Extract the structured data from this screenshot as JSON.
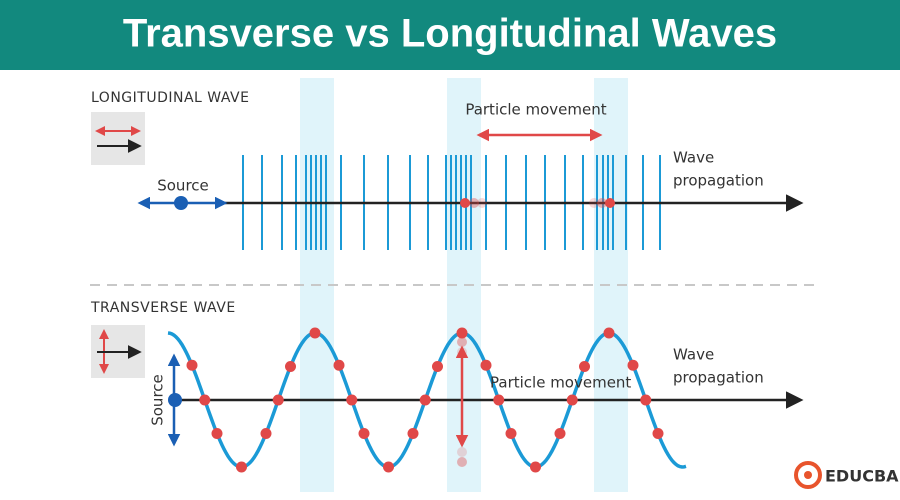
{
  "header": {
    "title": "Transverse vs Longitudinal Waves"
  },
  "longitudinal": {
    "label": "LONGITUDINAL WAVE",
    "particle_movement": "Particle movement",
    "source": "Source",
    "propagation": [
      "Wave",
      "propagation"
    ]
  },
  "transverse": {
    "label": "TRANSVERSE WAVE",
    "particle_movement": "Particle movement",
    "source": "Source",
    "propagation": [
      "Wave",
      "propagation"
    ]
  },
  "logo": {
    "text": "EDUCBA"
  }
}
